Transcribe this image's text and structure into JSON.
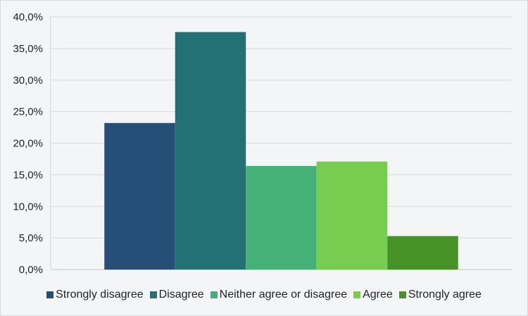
{
  "chart_data": {
    "type": "bar",
    "title": "",
    "xlabel": "",
    "ylabel": "",
    "ylim": [
      0,
      40
    ],
    "y_ticks": [
      "0,0%",
      "5,0%",
      "10,0%",
      "15,0%",
      "20,0%",
      "25,0%",
      "30,0%",
      "35,0%",
      "40,0%"
    ],
    "grid": true,
    "legend_position": "bottom",
    "series": [
      {
        "name": "Strongly disagree",
        "values": [
          23.2
        ],
        "color": "#264f78"
      },
      {
        "name": "Disagree",
        "values": [
          37.6
        ],
        "color": "#237175"
      },
      {
        "name": "Neither agree or disagree",
        "values": [
          16.4
        ],
        "color": "#46b177"
      },
      {
        "name": "Agree",
        "values": [
          17.1
        ],
        "color": "#76cd50"
      },
      {
        "name": "Strongly agree",
        "values": [
          5.3
        ],
        "color": "#479227"
      }
    ]
  }
}
